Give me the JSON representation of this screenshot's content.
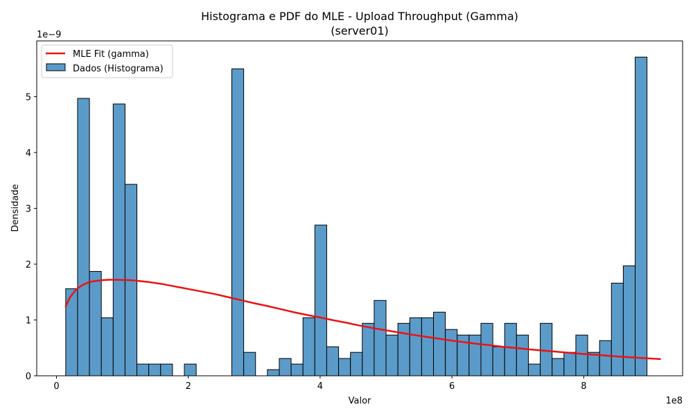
{
  "chart_data": {
    "type": "bar",
    "title_line1": "Histograma e PDF do MLE - Upload Throughput (Gamma)",
    "title_line2": "(server01)",
    "xlabel": "Valor",
    "ylabel": "Densidade",
    "x_offset_label": "1e8",
    "y_offset_label": "1e−9",
    "xlim": [
      -0.3,
      9.5
    ],
    "ylim": [
      0,
      6.0
    ],
    "x_ticks": [
      0,
      2,
      4,
      6,
      8
    ],
    "x_tick_labels": [
      "0",
      "2",
      "4",
      "6",
      "8"
    ],
    "y_ticks": [
      0,
      1,
      2,
      3,
      4,
      5
    ],
    "y_tick_labels": [
      "0",
      "1",
      "2",
      "3",
      "4",
      "5"
    ],
    "grid": false,
    "legend_position": "upper-left",
    "colors": {
      "bar_fill": "#5b9bc9",
      "bar_edge": "#000000",
      "fit_line": "#ee1111"
    },
    "histogram": {
      "name": "Dados (Histograma)",
      "x_start": 0.14,
      "bin_width": 0.18,
      "values": [
        1.56,
        4.97,
        1.87,
        1.04,
        4.87,
        3.43,
        0.21,
        0.21,
        0.21,
        0,
        0.21,
        0,
        0,
        0,
        5.5,
        0.42,
        0,
        0.11,
        0.31,
        0.21,
        1.04,
        2.7,
        0.52,
        0.31,
        0.42,
        0.94,
        1.35,
        0.73,
        0.94,
        1.04,
        1.04,
        1.14,
        0.83,
        0.73,
        0.73,
        0.94,
        0.52,
        0.94,
        0.73,
        0.21,
        0.94,
        0.31,
        0.42,
        0.73,
        0.42,
        0.63,
        1.66,
        1.97,
        5.71
      ]
    },
    "series": [
      {
        "name": "MLE Fit (gamma)",
        "type": "line",
        "x": [
          0.14,
          0.2,
          0.3,
          0.4,
          0.5,
          0.6,
          0.7,
          0.8,
          0.9,
          1.0,
          1.1,
          1.2,
          1.4,
          1.6,
          1.8,
          2.0,
          2.2,
          2.4,
          2.6,
          2.8,
          3.0,
          3.2,
          3.4,
          3.6,
          3.8,
          4.0,
          4.2,
          4.4,
          4.6,
          4.8,
          5.0,
          5.2,
          5.4,
          5.6,
          5.8,
          6.0,
          6.2,
          6.4,
          6.6,
          6.8,
          7.0,
          7.2,
          7.4,
          7.6,
          7.8,
          8.0,
          8.2,
          8.4,
          8.6,
          8.8,
          9.0,
          9.16
        ],
        "y": [
          1.24,
          1.4,
          1.55,
          1.63,
          1.68,
          1.7,
          1.715,
          1.72,
          1.72,
          1.718,
          1.714,
          1.705,
          1.68,
          1.645,
          1.6,
          1.555,
          1.51,
          1.465,
          1.41,
          1.355,
          1.3,
          1.25,
          1.195,
          1.14,
          1.09,
          1.045,
          0.995,
          0.95,
          0.9,
          0.855,
          0.815,
          0.775,
          0.735,
          0.7,
          0.665,
          0.63,
          0.6,
          0.57,
          0.545,
          0.515,
          0.495,
          0.47,
          0.45,
          0.43,
          0.41,
          0.39,
          0.375,
          0.355,
          0.34,
          0.325,
          0.31,
          0.3
        ]
      }
    ]
  }
}
